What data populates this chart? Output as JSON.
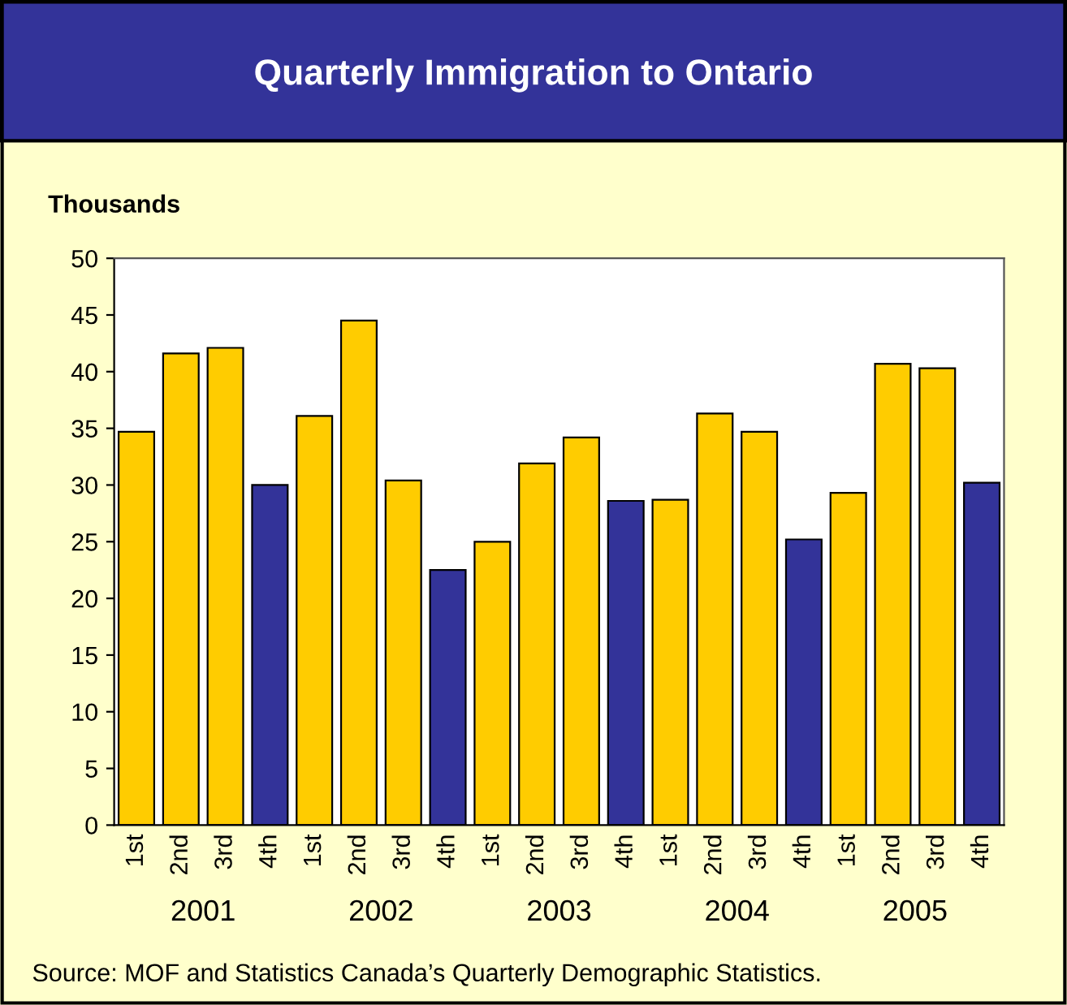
{
  "chart_data": {
    "type": "bar",
    "title": "Quarterly Immigration to Ontario",
    "ylabel": "Thousands",
    "categories": [
      "1st",
      "2nd",
      "3rd",
      "4th",
      "1st",
      "2nd",
      "3rd",
      "4th",
      "1st",
      "2nd",
      "3rd",
      "4th",
      "1st",
      "2nd",
      "3rd",
      "4th",
      "1st",
      "2nd",
      "3rd",
      "4th"
    ],
    "values": [
      34.7,
      41.6,
      42.1,
      30.0,
      36.1,
      44.5,
      30.4,
      22.5,
      25.0,
      31.9,
      34.2,
      28.6,
      28.7,
      36.3,
      34.7,
      25.2,
      29.3,
      40.7,
      40.3,
      30.2
    ],
    "colors": [
      "#ffcc00",
      "#ffcc00",
      "#ffcc00",
      "#333399",
      "#ffcc00",
      "#ffcc00",
      "#ffcc00",
      "#333399",
      "#ffcc00",
      "#ffcc00",
      "#ffcc00",
      "#333399",
      "#ffcc00",
      "#ffcc00",
      "#ffcc00",
      "#333399",
      "#ffcc00",
      "#ffcc00",
      "#ffcc00",
      "#333399"
    ],
    "ylim": [
      0,
      50
    ],
    "yticks": [
      0,
      5,
      10,
      15,
      20,
      25,
      30,
      35,
      40,
      45,
      50
    ],
    "grid": false,
    "legend": false,
    "annotations": [
      "2001",
      "2002",
      "2003",
      "2004",
      "2005",
      "Source: MOF and Statistics Canada’s Quarterly Demographic Statistics."
    ]
  }
}
